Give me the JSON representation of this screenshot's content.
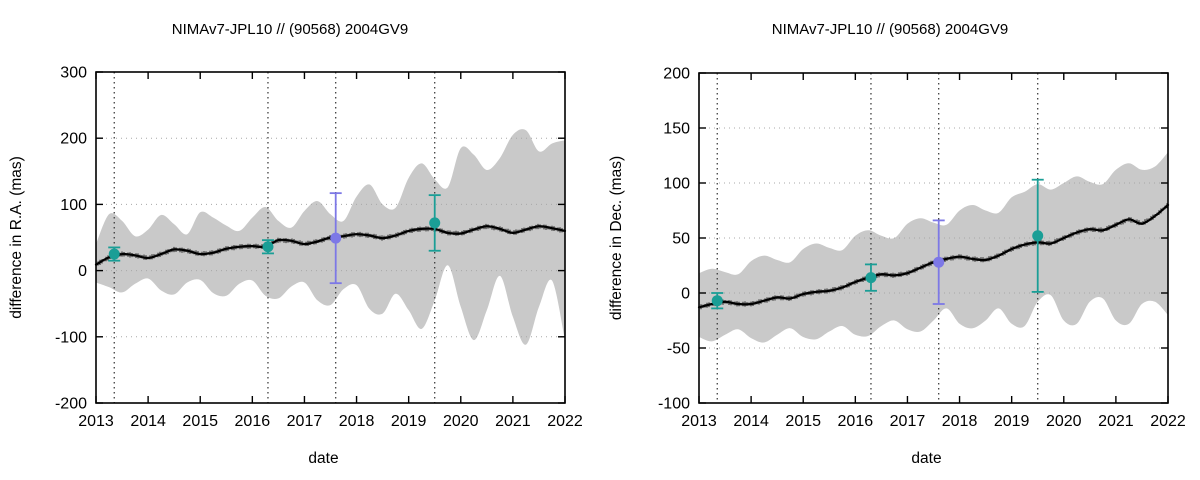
{
  "page": {
    "background": "#ffffff"
  },
  "colors": {
    "band": "#c9c9c9",
    "line": "#000000",
    "teal": "#1a9e96",
    "purple": "#7d78e6",
    "grid": "#a8a8a8",
    "vline": "#303030",
    "axis": "#000000"
  },
  "chart_data": [
    {
      "type": "line",
      "title": "NIMAv7-JPL10 // (90568) 2004GV9",
      "xlabel": "date",
      "ylabel": "difference in R.A. (mas)",
      "xlim": [
        2013,
        2022
      ],
      "ylim": [
        -200,
        300
      ],
      "xticks": [
        2013,
        2014,
        2015,
        2016,
        2017,
        2018,
        2019,
        2020,
        2021,
        2022
      ],
      "yticks": [
        -200,
        -100,
        0,
        100,
        200,
        300
      ],
      "grid": {
        "horizontal": true,
        "style": "dotted"
      },
      "vlines": [
        2013.35,
        2016.3,
        2017.6,
        2019.5
      ],
      "series": [
        {
          "name": "uncertainty-band",
          "type": "band",
          "color_key": "band",
          "t_start": 2013,
          "t_step": 0.25,
          "top": [
            40,
            85,
            75,
            52,
            62,
            84,
            70,
            55,
            88,
            80,
            68,
            60,
            80,
            96,
            75,
            65,
            90,
            105,
            85,
            75,
            112,
            130,
            100,
            95,
            140,
            162,
            138,
            126,
            185,
            175,
            152,
            170,
            205,
            212,
            180,
            192,
            197
          ],
          "bottom": [
            -18,
            -25,
            -33,
            -20,
            -12,
            -30,
            -36,
            -18,
            -14,
            -34,
            -38,
            -20,
            -15,
            -38,
            -42,
            -24,
            -18,
            -45,
            -52,
            -28,
            -22,
            -58,
            -65,
            -35,
            -60,
            -88,
            -45,
            8,
            -55,
            -105,
            -60,
            -8,
            -70,
            -112,
            -55,
            -15,
            -105
          ]
        },
        {
          "name": "nima-prediction",
          "type": "line",
          "color_key": "line",
          "t_start": 2013,
          "t_step": 0.25,
          "values": [
            9,
            20,
            25,
            23,
            19,
            25,
            32,
            30,
            25,
            27,
            33,
            36,
            37,
            36,
            46,
            45,
            40,
            44,
            50,
            52,
            55,
            53,
            49,
            53,
            60,
            63,
            63,
            57,
            56,
            62,
            67,
            63,
            57,
            62,
            67,
            64,
            60
          ]
        },
        {
          "name": "observations",
          "type": "points",
          "points": [
            {
              "t": 2013.35,
              "v": 25,
              "err": 10,
              "color_key": "teal"
            },
            {
              "t": 2016.3,
              "v": 36,
              "err": 10,
              "color_key": "teal"
            },
            {
              "t": 2017.6,
              "v": 49,
              "err": 68,
              "color_key": "purple"
            },
            {
              "t": 2019.5,
              "v": 72,
              "err": 42,
              "color_key": "teal"
            }
          ]
        }
      ]
    },
    {
      "type": "line",
      "title": "NIMAv7-JPL10 // (90568) 2004GV9",
      "xlabel": "date",
      "ylabel": "difference in Dec. (mas)",
      "xlim": [
        2013,
        2022
      ],
      "ylim": [
        -100,
        200
      ],
      "xticks": [
        2013,
        2014,
        2015,
        2016,
        2017,
        2018,
        2019,
        2020,
        2021,
        2022
      ],
      "yticks": [
        -100,
        -50,
        0,
        50,
        100,
        150,
        200
      ],
      "grid": {
        "horizontal": true,
        "style": "dotted"
      },
      "vlines": [
        2013.35,
        2016.3,
        2017.6,
        2019.5
      ],
      "series": [
        {
          "name": "uncertainty-band",
          "type": "band",
          "color_key": "band",
          "t_start": 2013,
          "t_step": 0.25,
          "top": [
            18,
            22,
            19,
            17,
            29,
            34,
            30,
            28,
            40,
            45,
            41,
            39,
            52,
            57,
            52,
            50,
            63,
            68,
            64,
            62,
            75,
            80,
            75,
            73,
            87,
            92,
            99,
            94,
            100,
            106,
            101,
            99,
            112,
            118,
            112,
            115,
            128
          ],
          "bottom": [
            -40,
            -44,
            -38,
            -33,
            -41,
            -45,
            -38,
            -32,
            -40,
            -42,
            -35,
            -30,
            -38,
            -39,
            -30,
            -25,
            -33,
            -35,
            -25,
            -14,
            -28,
            -32,
            -25,
            -14,
            -28,
            -30,
            -8,
            -2,
            -25,
            -28,
            -8,
            -5,
            -25,
            -28,
            -10,
            -8,
            -20
          ]
        },
        {
          "name": "nima-prediction",
          "type": "line",
          "color_key": "line",
          "t_start": 2013,
          "t_step": 0.25,
          "values": [
            -13,
            -10,
            -8,
            -10,
            -10,
            -7,
            -4,
            -5,
            -1,
            1,
            2,
            5,
            10,
            14,
            17,
            16,
            18,
            23,
            28,
            31,
            33,
            31,
            30,
            34,
            40,
            44,
            46,
            45,
            50,
            55,
            58,
            57,
            62,
            67,
            63,
            70,
            80
          ]
        },
        {
          "name": "observations",
          "type": "points",
          "points": [
            {
              "t": 2013.35,
              "v": -7,
              "err": 7,
              "color_key": "teal"
            },
            {
              "t": 2016.3,
              "v": 14,
              "err": 12,
              "color_key": "teal"
            },
            {
              "t": 2017.6,
              "v": 28,
              "err": 38,
              "color_key": "purple"
            },
            {
              "t": 2019.5,
              "v": 52,
              "err": 51,
              "color_key": "teal"
            }
          ]
        }
      ]
    }
  ]
}
